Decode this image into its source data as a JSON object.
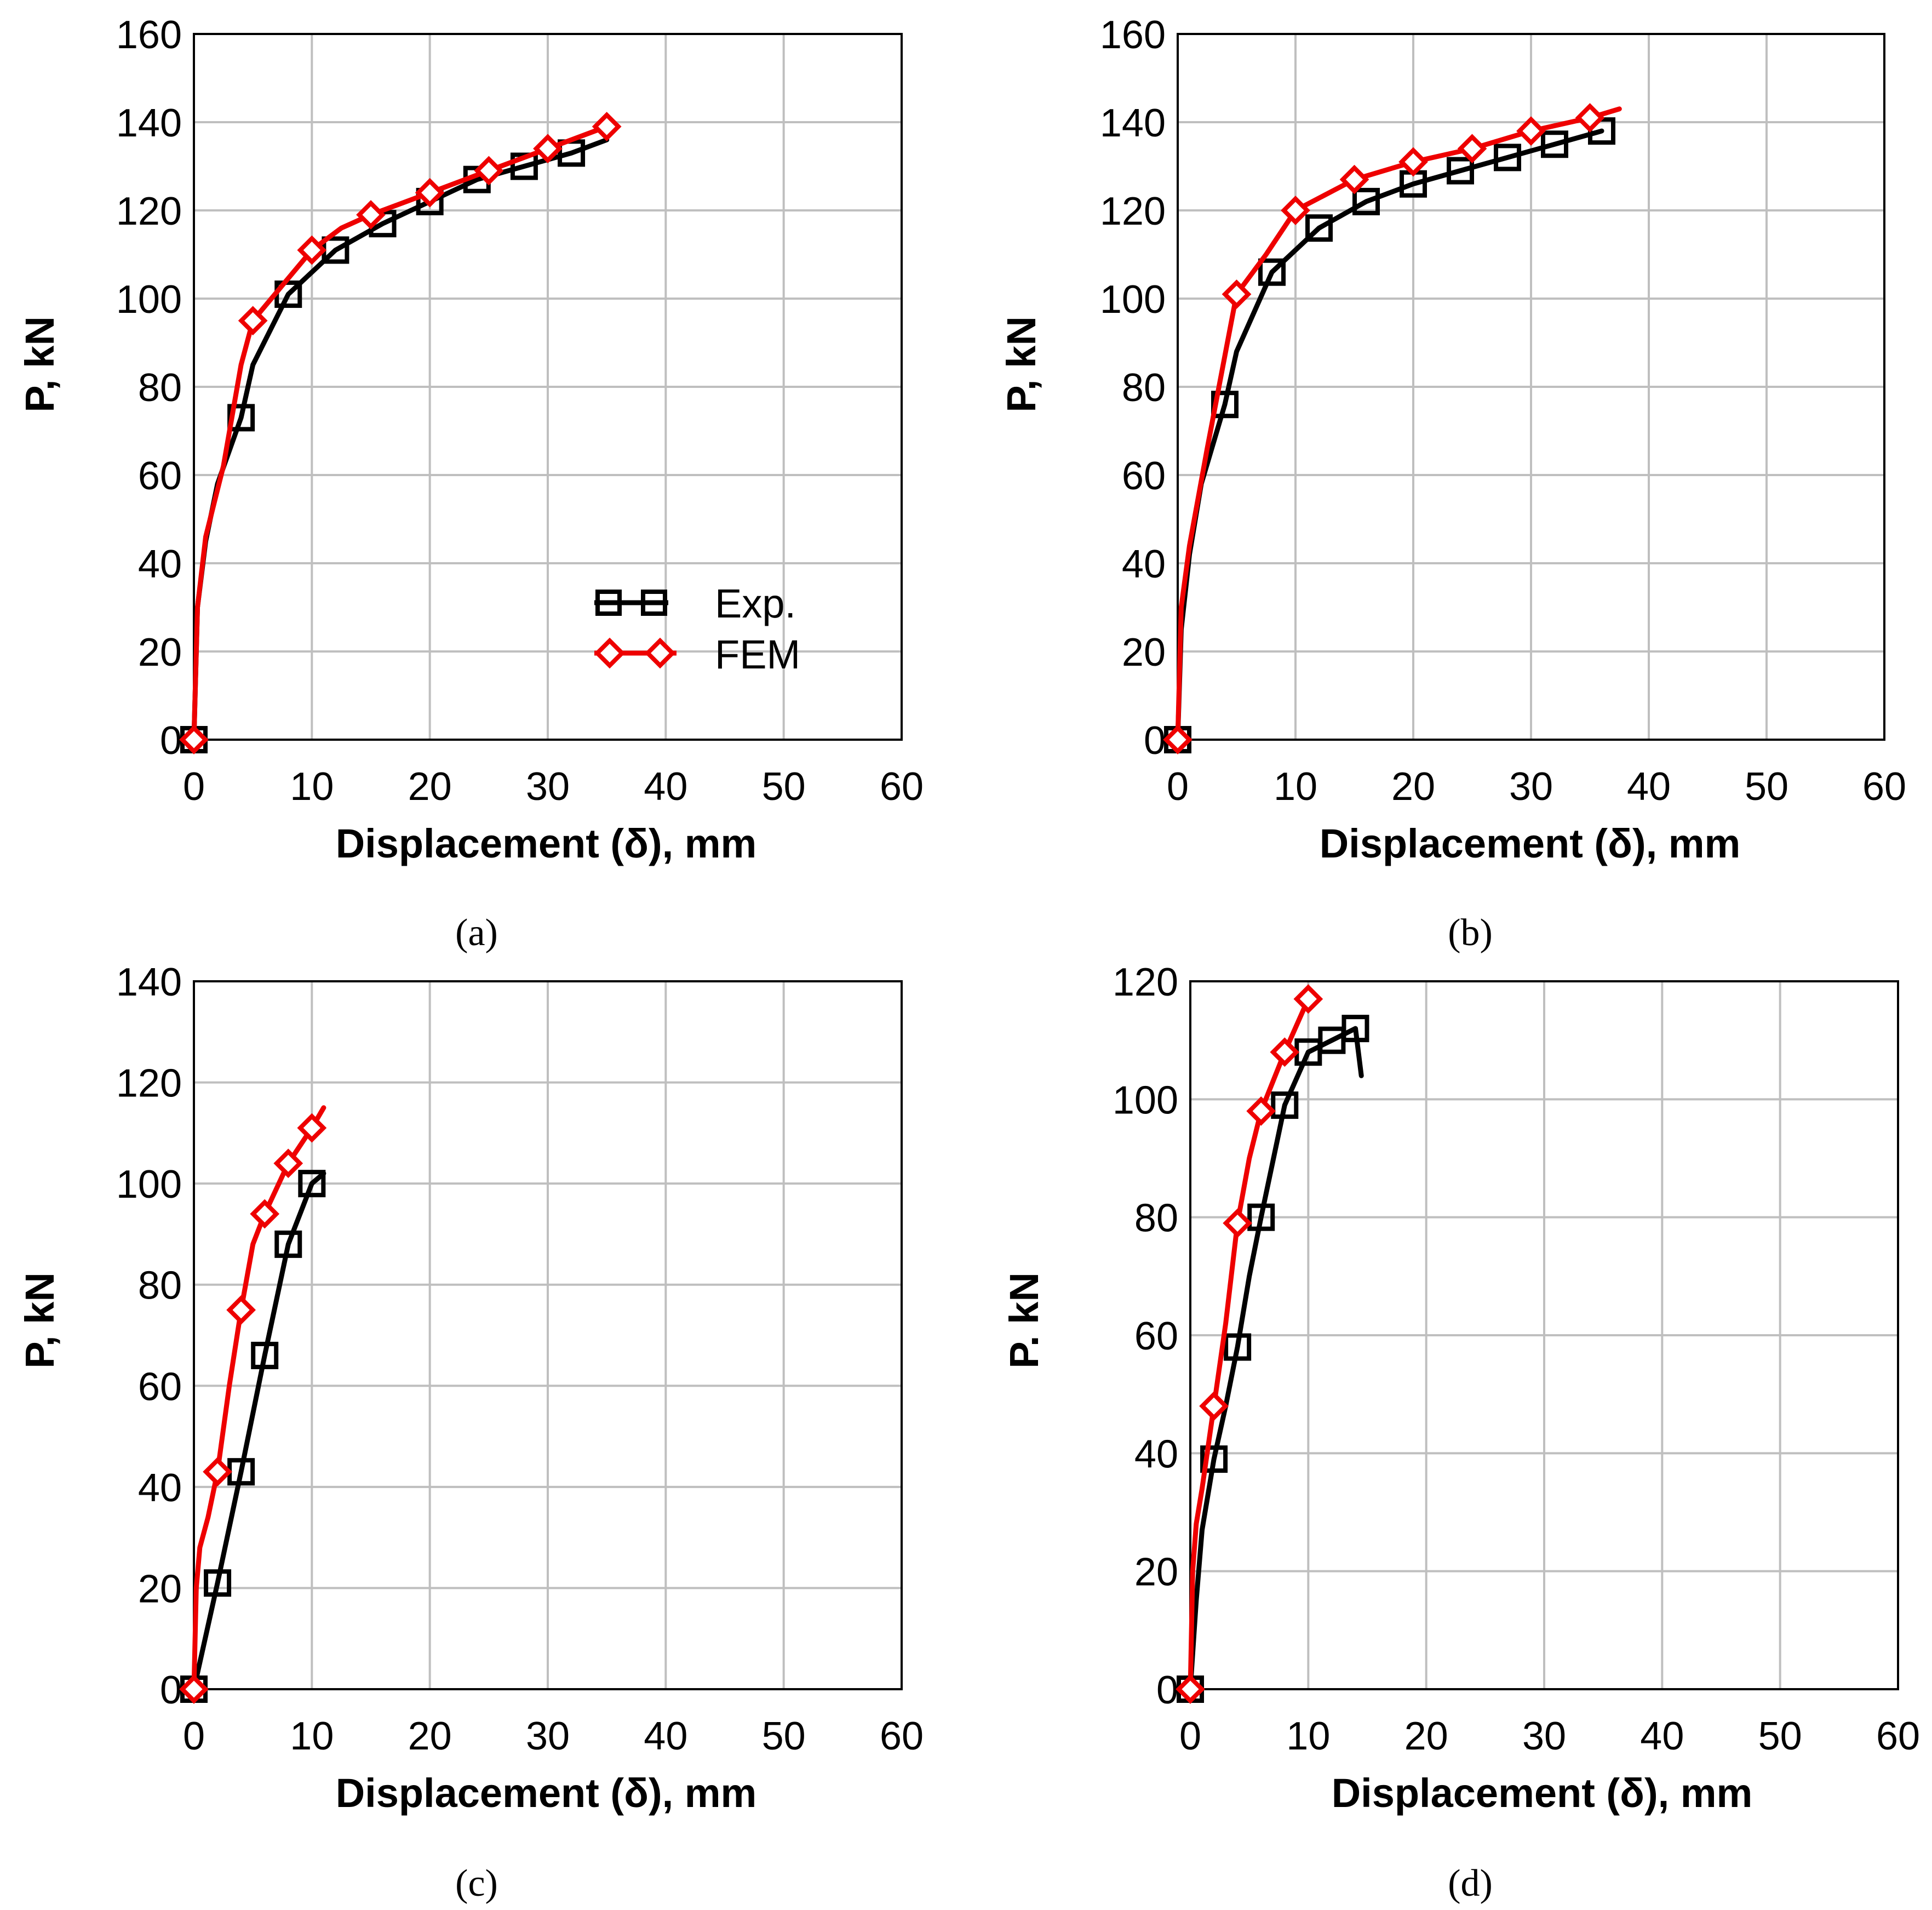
{
  "colors": {
    "exp": "#000000",
    "fem": "#ee0000",
    "grid": "#bfbfbf"
  },
  "chart_data": [
    {
      "type": "line",
      "panel_label": "(a)",
      "xlabel": "Displacement (δ), mm",
      "ylabel": "P, kN",
      "xlim": [
        0,
        60
      ],
      "ylim": [
        0,
        160
      ],
      "xticks": [
        "0",
        "10",
        "20",
        "30",
        "40",
        "50",
        "60"
      ],
      "yticks": [
        "0",
        "20",
        "40",
        "60",
        "80",
        "100",
        "120",
        "140",
        "160"
      ],
      "grid": true,
      "legend": {
        "position": "bottom-right",
        "entries": [
          "Exp.",
          "FEM"
        ]
      },
      "series": [
        {
          "name": "Exp.",
          "color": "#000000",
          "marker": "square",
          "x": [
            0,
            0.3,
            1,
            2,
            4,
            5,
            8,
            12,
            16,
            20,
            24,
            28,
            32,
            35
          ],
          "y": [
            0,
            30,
            45,
            58,
            73,
            85,
            101,
            111,
            117,
            122,
            127,
            130,
            133,
            136
          ],
          "marker_x": [
            0,
            4,
            8,
            12,
            16,
            20,
            24,
            28,
            32
          ],
          "marker_y": [
            0,
            73,
            101,
            111,
            117,
            122,
            127,
            130,
            133
          ]
        },
        {
          "name": "FEM",
          "color": "#ee0000",
          "marker": "diamond",
          "x": [
            0,
            0.3,
            1,
            2.5,
            4,
            5,
            7.5,
            10,
            12.5,
            15,
            20,
            25,
            30,
            35
          ],
          "y": [
            0,
            30,
            46,
            62,
            85,
            95,
            103,
            111,
            116,
            119,
            124,
            129,
            134,
            139
          ],
          "marker_x": [
            0,
            5,
            10,
            15,
            20,
            25,
            30,
            35
          ],
          "marker_y": [
            0,
            95,
            111,
            119,
            124,
            129,
            134,
            139
          ]
        }
      ]
    },
    {
      "type": "line",
      "panel_label": "(b)",
      "xlabel": "Displacement (δ), mm",
      "ylabel": "P, kN",
      "xlim": [
        0,
        60
      ],
      "ylim": [
        0,
        160
      ],
      "xticks": [
        "0",
        "10",
        "20",
        "30",
        "40",
        "50",
        "60"
      ],
      "yticks": [
        "0",
        "20",
        "40",
        "60",
        "80",
        "100",
        "120",
        "140",
        "160"
      ],
      "grid": true,
      "series": [
        {
          "name": "Exp.",
          "color": "#000000",
          "marker": "square",
          "x": [
            0,
            0.3,
            1,
            2,
            4,
            5,
            8,
            12,
            16,
            20,
            24,
            28,
            32,
            36
          ],
          "y": [
            0,
            25,
            42,
            58,
            76,
            88,
            106,
            116,
            122,
            126,
            129,
            132,
            135,
            138
          ],
          "marker_x": [
            0,
            4,
            8,
            12,
            16,
            20,
            24,
            28,
            32,
            36
          ],
          "marker_y": [
            0,
            76,
            106,
            116,
            122,
            126,
            129,
            132,
            135,
            138
          ]
        },
        {
          "name": "FEM",
          "color": "#ee0000",
          "marker": "diamond",
          "x": [
            0,
            0.3,
            1,
            2.5,
            5,
            7.5,
            10,
            15,
            20,
            25,
            30,
            35,
            37.5
          ],
          "y": [
            0,
            30,
            44,
            66,
            101,
            110,
            120,
            127,
            131,
            134,
            138,
            141,
            143
          ],
          "marker_x": [
            0,
            5,
            10,
            15,
            20,
            25,
            30,
            35
          ],
          "marker_y": [
            0,
            101,
            120,
            127,
            131,
            134,
            138,
            141
          ]
        }
      ]
    },
    {
      "type": "line",
      "panel_label": "(c)",
      "xlabel": "Displacement (δ), mm",
      "ylabel": "P, kN",
      "xlim": [
        0,
        60
      ],
      "ylim": [
        0,
        140
      ],
      "xticks": [
        "0",
        "10",
        "20",
        "30",
        "40",
        "50",
        "60"
      ],
      "yticks": [
        "0",
        "20",
        "40",
        "60",
        "80",
        "100",
        "120",
        "140"
      ],
      "grid": true,
      "series": [
        {
          "name": "Exp.",
          "color": "#000000",
          "marker": "square",
          "x": [
            0,
            2,
            4,
            6,
            8,
            10,
            11
          ],
          "y": [
            0,
            21,
            43,
            66,
            88,
            100,
            102
          ],
          "marker_x": [
            0,
            2,
            4,
            6,
            8,
            10
          ],
          "marker_y": [
            0,
            21,
            43,
            66,
            88,
            100
          ]
        },
        {
          "name": "FEM",
          "color": "#ee0000",
          "marker": "diamond",
          "x": [
            0,
            0.2,
            0.5,
            1.2,
            2,
            3,
            4,
            5,
            6,
            8,
            10,
            11
          ],
          "y": [
            0,
            20,
            28,
            34,
            43,
            60,
            75,
            88,
            94,
            104,
            111,
            115
          ],
          "marker_x": [
            0,
            2,
            4,
            6,
            8,
            10
          ],
          "marker_y": [
            0,
            43,
            75,
            94,
            104,
            111
          ]
        }
      ]
    },
    {
      "type": "line",
      "panel_label": "(d)",
      "xlabel": "Displacement (δ), mm",
      "ylabel": "P. kN",
      "xlim": [
        0,
        60
      ],
      "ylim": [
        0,
        120
      ],
      "xticks": [
        "0",
        "10",
        "20",
        "30",
        "40",
        "50",
        "60"
      ],
      "yticks": [
        "0",
        "20",
        "40",
        "60",
        "80",
        "100",
        "120"
      ],
      "grid": true,
      "series": [
        {
          "name": "Exp.",
          "color": "#000000",
          "marker": "square",
          "x": [
            0,
            0.5,
            1,
            2,
            3,
            4,
            5,
            6,
            8,
            10,
            12,
            14,
            14.5
          ],
          "y": [
            0,
            15,
            27,
            39,
            48,
            58,
            70,
            80,
            99,
            108,
            110,
            112,
            104
          ],
          "marker_x": [
            0,
            2,
            4,
            6,
            8,
            10,
            12,
            14
          ],
          "marker_y": [
            0,
            39,
            58,
            80,
            99,
            108,
            110,
            112
          ]
        },
        {
          "name": "FEM",
          "color": "#ee0000",
          "marker": "diamond",
          "x": [
            0,
            0.2,
            0.5,
            1,
            2,
            3,
            4,
            5,
            6,
            8,
            10
          ],
          "y": [
            0,
            20,
            28,
            34,
            48,
            62,
            79,
            90,
            98,
            108,
            117
          ],
          "marker_x": [
            0,
            2,
            4,
            6,
            8,
            10
          ],
          "marker_y": [
            0,
            48,
            79,
            98,
            108,
            117
          ]
        }
      ]
    }
  ]
}
